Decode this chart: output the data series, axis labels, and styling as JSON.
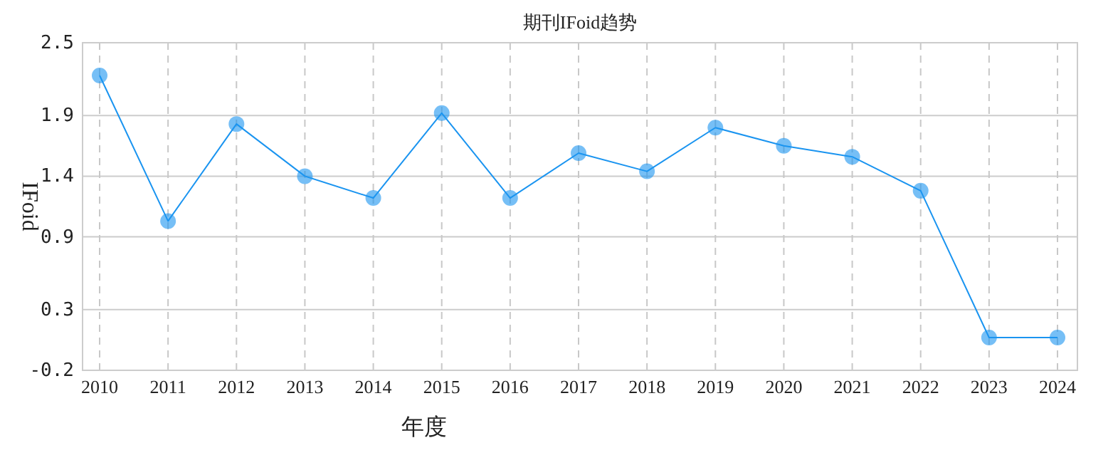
{
  "chart_data": {
    "type": "line",
    "title": "期刊IFoid趋势",
    "xlabel": "年度",
    "ylabel": "IFoid",
    "categories": [
      "2010",
      "2011",
      "2012",
      "2013",
      "2014",
      "2015",
      "2016",
      "2017",
      "2018",
      "2019",
      "2020",
      "2021",
      "2022",
      "2023",
      "2024"
    ],
    "series": [
      {
        "color": "#1a94f0",
        "values": [
          2.23,
          1.03,
          1.83,
          1.4,
          1.22,
          1.92,
          1.22,
          1.59,
          1.44,
          1.8,
          1.65,
          1.56,
          1.28,
          0.07,
          0.07
        ]
      }
    ],
    "ylim": [
      -0.2,
      2.5
    ],
    "yticks": [
      2.5,
      1.9,
      1.4,
      0.9,
      0.3,
      -0.2
    ],
    "grid": true,
    "marker": "circle",
    "line_style": "solid"
  }
}
